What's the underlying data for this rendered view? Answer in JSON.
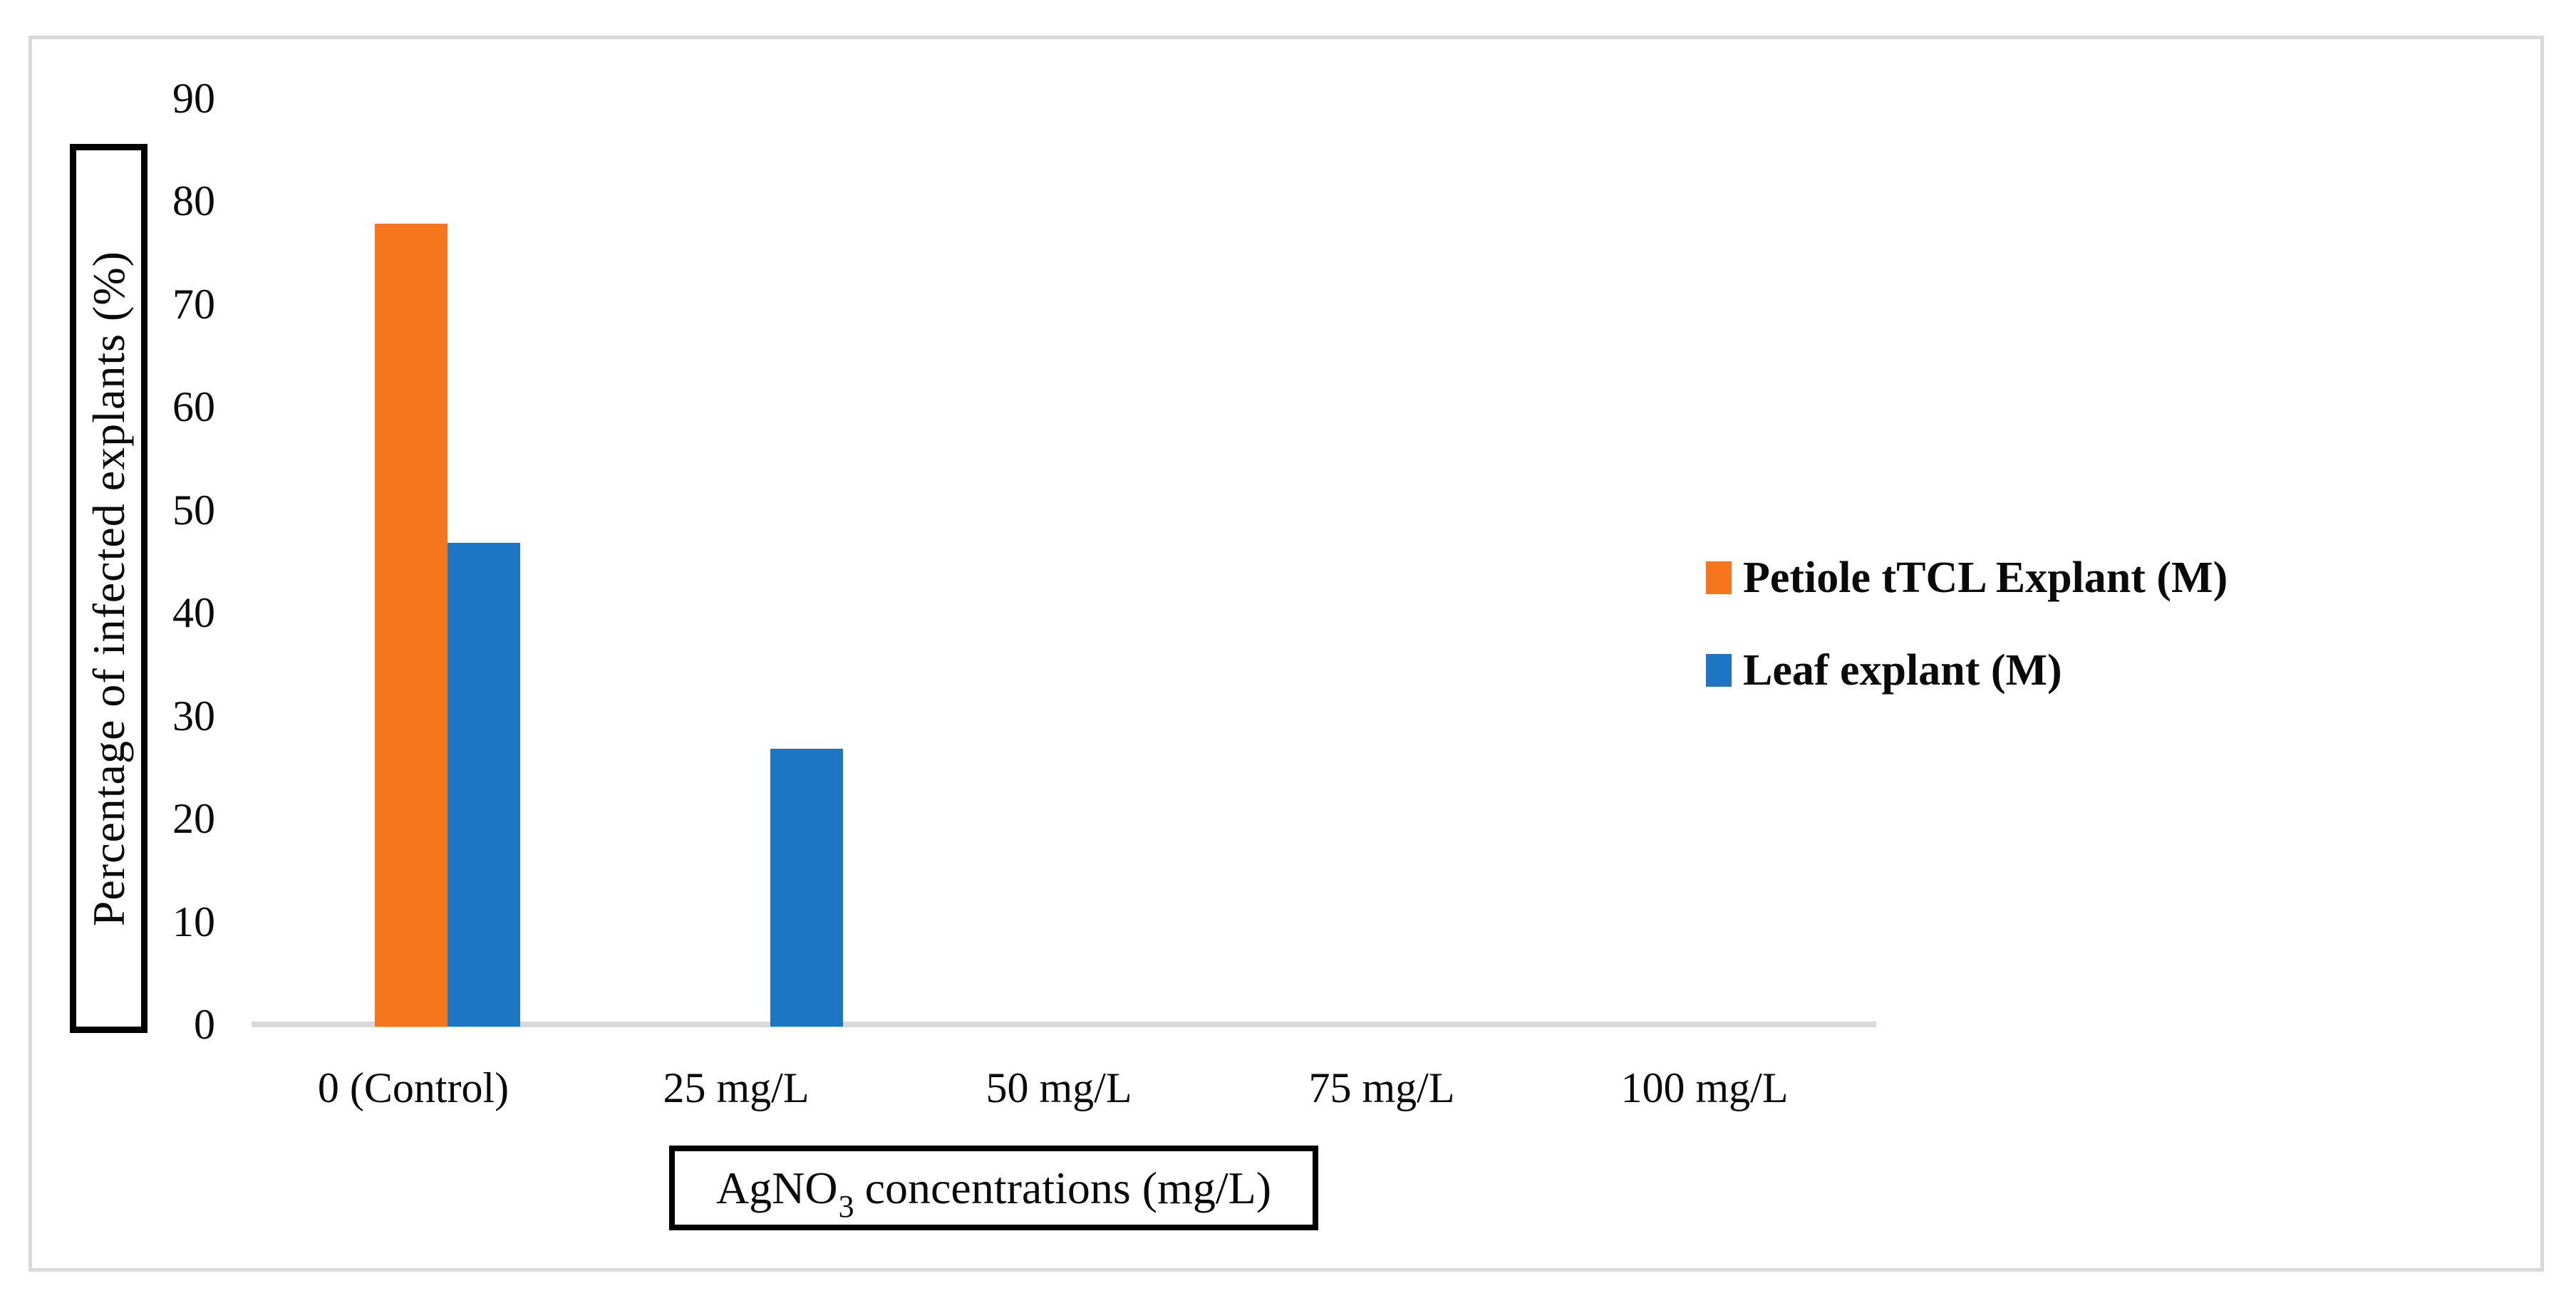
{
  "figure": {
    "type_note": "grouped vertical bar chart in a framed white figure",
    "frame_border_color": "#d9d9d9",
    "axis_line_color": "#d9d9d9",
    "text_color": "#0a0a0a"
  },
  "chart_data": {
    "type": "bar",
    "title": "",
    "categories": [
      "0 (Control)",
      "25 mg/L",
      "50 mg/L",
      "75 mg/L",
      "100 mg/L"
    ],
    "series": [
      {
        "name": "Petiole tTCL Explant (M)",
        "color": "#f6761d",
        "values": [
          78,
          0,
          0,
          0,
          0
        ]
      },
      {
        "name": "Leaf explant (M)",
        "color": "#1c76c4",
        "values": [
          47,
          27,
          0,
          0,
          0
        ]
      }
    ],
    "xlabel": {
      "prefix": "AgNO",
      "subscript": "3",
      "suffix": " concentrations (mg/L)"
    },
    "ylabel": "Percentage of infected explants (%)",
    "ylim": [
      0,
      90
    ],
    "yticks": [
      90,
      80,
      70,
      60,
      50,
      40,
      30,
      20,
      10,
      0
    ],
    "grid": false,
    "legend_position": "right-middle"
  }
}
